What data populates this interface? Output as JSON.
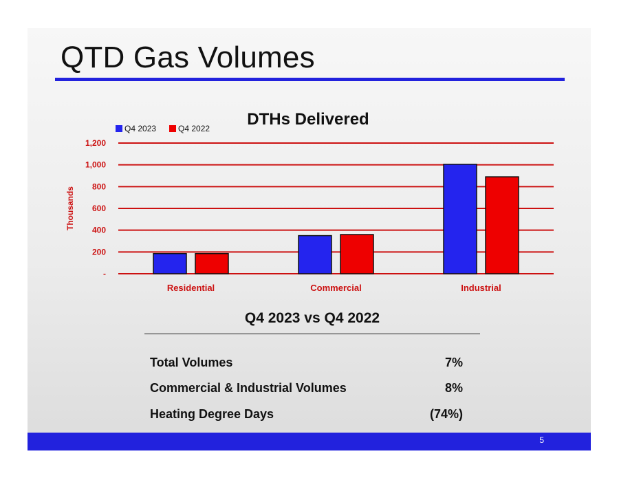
{
  "slide": {
    "title": "QTD Gas Volumes",
    "page_number": "5"
  },
  "colors": {
    "accent_blue": "#2222dd",
    "series_blue": "#2424ee",
    "series_red": "#ee0000",
    "axis_red": "#cc1111"
  },
  "chart_data": {
    "type": "bar",
    "title": "DTHs Delivered",
    "categories": [
      "Residential",
      "Commercial",
      "Industrial"
    ],
    "series": [
      {
        "name": "Q4 2023",
        "values": [
          185,
          350,
          1005
        ]
      },
      {
        "name": "Q4 2022",
        "values": [
          185,
          360,
          890
        ]
      }
    ],
    "xlabel": "",
    "ylabel": "Thousands",
    "ylim": [
      0,
      1200
    ],
    "yticks": [
      0,
      200,
      400,
      600,
      800,
      1000,
      1200
    ],
    "ytick_labels": [
      "-",
      "200",
      "400",
      "600",
      "800",
      "1,000",
      "1,200"
    ],
    "grid": true,
    "legend_position": "top-left"
  },
  "comparison": {
    "heading": "Q4 2023 vs Q4 2022",
    "rows": [
      {
        "label": "Total Volumes",
        "value": "7%"
      },
      {
        "label": "Commercial & Industrial Volumes",
        "value": "8%"
      },
      {
        "label": "Heating Degree Days",
        "value": "(74%)"
      }
    ]
  }
}
